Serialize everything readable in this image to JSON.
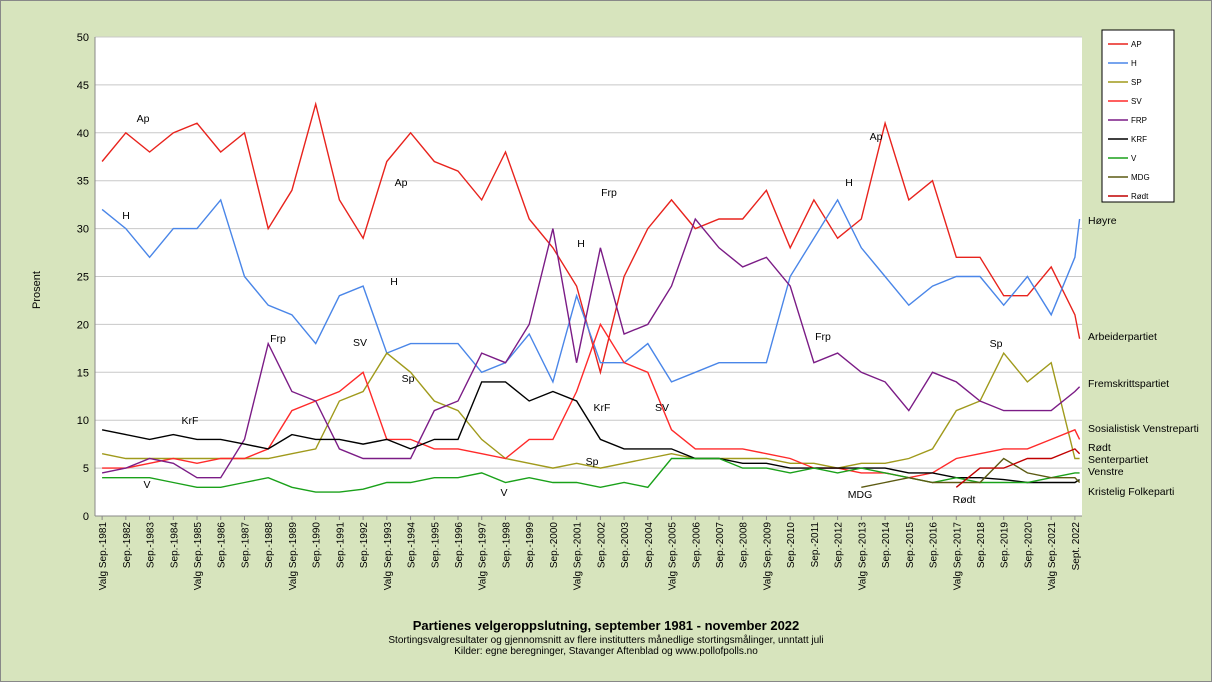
{
  "chart_data": {
    "type": "line",
    "title": "Partienes velgeroppslutning, september 1981 - november 2022",
    "subtitle": "Stortingsvalgresultater og gjennomsnitt av flere institutters månedlige stortingsmålinger, unntatt juli",
    "source": "Kilder: egne beregninger, Stavanger Aftenblad og www.pollofpolls.no",
    "y_label": "Prosent",
    "x": [
      1981.7,
      1982.7,
      1983.7,
      1984.7,
      1985.7,
      1986.7,
      1987.7,
      1988.7,
      1989.7,
      1990.7,
      1991.7,
      1992.7,
      1993.7,
      1994.7,
      1995.7,
      1996.7,
      1997.7,
      1998.7,
      1999.7,
      2000.7,
      2001.7,
      2002.7,
      2003.7,
      2004.7,
      2005.7,
      2006.7,
      2007.7,
      2008.7,
      2009.7,
      2010.7,
      2011.7,
      2012.7,
      2013.7,
      2014.7,
      2015.7,
      2016.7,
      2017.7,
      2018.7,
      2019.7,
      2020.7,
      2021.7,
      2022.7,
      2022.9
    ],
    "xlim": [
      1981.4,
      2023.0
    ],
    "xticks": [
      {
        "value": 1981.7,
        "label": "Valg Sep.-1981"
      },
      {
        "value": 1982.7,
        "label": "Sep.-1982"
      },
      {
        "value": 1983.7,
        "label": "Sep.-1983"
      },
      {
        "value": 1984.7,
        "label": "Sep.-1984"
      },
      {
        "value": 1985.7,
        "label": "Valg Sep.-1985"
      },
      {
        "value": 1986.7,
        "label": "Sep.-1986"
      },
      {
        "value": 1987.7,
        "label": "Sep.-1987"
      },
      {
        "value": 1988.7,
        "label": "Sep.-1988"
      },
      {
        "value": 1989.7,
        "label": "Valg Sep.-1989"
      },
      {
        "value": 1990.7,
        "label": "Sep.-1990"
      },
      {
        "value": 1991.7,
        "label": "Sep.-1991"
      },
      {
        "value": 1992.7,
        "label": "Sep.-1992"
      },
      {
        "value": 1993.7,
        "label": "Valg Sep.-1993"
      },
      {
        "value": 1994.7,
        "label": "Sep.-1994"
      },
      {
        "value": 1995.7,
        "label": "Sep.-1995"
      },
      {
        "value": 1996.7,
        "label": "Sep.-1996"
      },
      {
        "value": 1997.7,
        "label": "Valg Sep.-1997"
      },
      {
        "value": 1998.7,
        "label": "Sep.-1998"
      },
      {
        "value": 1999.7,
        "label": "Sep.-1999"
      },
      {
        "value": 2000.7,
        "label": "Sep.-2000"
      },
      {
        "value": 2001.7,
        "label": "Valg Sep.-2001"
      },
      {
        "value": 2002.7,
        "label": "Sep.-2002"
      },
      {
        "value": 2003.7,
        "label": "Sep.-2003"
      },
      {
        "value": 2004.7,
        "label": "Sep.-2004"
      },
      {
        "value": 2005.7,
        "label": "Valg Sep.-2005"
      },
      {
        "value": 2006.7,
        "label": "Sep.-2006"
      },
      {
        "value": 2007.7,
        "label": "Sep.-2007"
      },
      {
        "value": 2008.7,
        "label": "Sep.-2008"
      },
      {
        "value": 2009.7,
        "label": "Valg Sep.-2009"
      },
      {
        "value": 2010.7,
        "label": "Sep.-2010"
      },
      {
        "value": 2011.7,
        "label": "Sep.-2011"
      },
      {
        "value": 2012.7,
        "label": "Sep.-2012"
      },
      {
        "value": 2013.7,
        "label": "Valg Sep.-2013"
      },
      {
        "value": 2014.7,
        "label": "Sep.-2014"
      },
      {
        "value": 2015.7,
        "label": "Sep.-2015"
      },
      {
        "value": 2016.7,
        "label": "Sep.-2016"
      },
      {
        "value": 2017.7,
        "label": "Valg Sep.-2017"
      },
      {
        "value": 2018.7,
        "label": "Sep.-2018"
      },
      {
        "value": 2019.7,
        "label": "Sep.-2019"
      },
      {
        "value": 2020.7,
        "label": "Sep.-2020"
      },
      {
        "value": 2021.7,
        "label": "Valg Sep.-2021"
      },
      {
        "value": 2022.7,
        "label": "Sept. 2022"
      }
    ],
    "ylim": [
      0,
      50
    ],
    "yticks": [
      0,
      5,
      10,
      15,
      20,
      25,
      30,
      35,
      40,
      45,
      50
    ],
    "grid": true,
    "legend": "top-right",
    "series": [
      {
        "name": "AP",
        "color": "#e8231d",
        "values": [
          37,
          40,
          38,
          40,
          41,
          38,
          40,
          30,
          34,
          43,
          33,
          29,
          37,
          40,
          37,
          36,
          33,
          38,
          31,
          28,
          24,
          15,
          25,
          30,
          33,
          30,
          31,
          31,
          34,
          28,
          33,
          29,
          31,
          41,
          33,
          35,
          27,
          27,
          23,
          23,
          26,
          21,
          18.5
        ]
      },
      {
        "name": "H",
        "color": "#4a86e8",
        "values": [
          32,
          30,
          27,
          30,
          30,
          33,
          25,
          22,
          21,
          18,
          23,
          24,
          17,
          18,
          18,
          18,
          15,
          16,
          19,
          14,
          23,
          16,
          16,
          18,
          14,
          15,
          16,
          16,
          16,
          25,
          29,
          33,
          28,
          25,
          22,
          24,
          25,
          25,
          22,
          25,
          21,
          27,
          31
        ]
      },
      {
        "name": "SP",
        "color": "#a09a1c",
        "values": [
          6.5,
          6,
          6,
          6,
          6,
          6,
          6,
          6,
          6.5,
          7,
          12,
          13,
          17,
          15,
          12,
          11,
          8,
          6,
          5.5,
          5,
          5.5,
          5,
          5.5,
          6,
          6.5,
          6,
          6,
          6,
          6,
          5.5,
          5.5,
          5,
          5.5,
          5.5,
          6,
          7,
          11,
          12,
          17,
          14,
          16,
          6,
          6
        ]
      },
      {
        "name": "SV",
        "color": "#ff2a2a",
        "values": [
          5,
          5,
          5.5,
          6,
          5.5,
          6,
          6,
          7,
          11,
          12,
          13,
          15,
          8,
          8,
          7,
          7,
          6.5,
          6,
          8,
          8,
          13,
          20,
          16,
          15,
          9,
          7,
          7,
          7,
          6.5,
          6,
          5,
          5,
          4.5,
          4.5,
          4,
          4.5,
          6,
          6.5,
          7,
          7,
          8,
          9,
          8
        ]
      },
      {
        "name": "FRP",
        "color": "#7b1c86",
        "values": [
          4.5,
          5,
          6,
          5.5,
          4,
          4,
          8,
          18,
          13,
          12,
          7,
          6,
          6,
          6,
          11,
          12,
          17,
          16,
          20,
          30,
          16,
          28,
          19,
          20,
          24,
          31,
          28,
          26,
          27,
          24,
          16,
          17,
          15,
          14,
          11,
          15,
          14,
          12,
          11,
          11,
          11,
          13,
          13.5
        ]
      },
      {
        "name": "KRF",
        "color": "#000000",
        "values": [
          9,
          8.5,
          8,
          8.5,
          8,
          8,
          7.5,
          7,
          8.5,
          8,
          8,
          7.5,
          8,
          7,
          8,
          8,
          14,
          14,
          12,
          13,
          12,
          8,
          7,
          7,
          7,
          6,
          6,
          5.5,
          5.5,
          5,
          5,
          5,
          5,
          5,
          4.5,
          4.5,
          4,
          4,
          3.8,
          3.5,
          3.5,
          3.5,
          3.8
        ]
      },
      {
        "name": "V",
        "color": "#1aa11a",
        "values": [
          4,
          4,
          4,
          3.5,
          3,
          3,
          3.5,
          4,
          3,
          2.5,
          2.5,
          2.8,
          3.5,
          3.5,
          4,
          4,
          4.5,
          3.5,
          4,
          3.5,
          3.5,
          3,
          3.5,
          3,
          6,
          6,
          6,
          5,
          5,
          4.5,
          5,
          4.5,
          5,
          4.5,
          4,
          3.5,
          4,
          3.5,
          3.5,
          3.5,
          4,
          4.5,
          4.5
        ]
      },
      {
        "name": "MDG",
        "color": "#5c5a12",
        "values": [
          null,
          null,
          null,
          null,
          null,
          null,
          null,
          null,
          null,
          null,
          null,
          null,
          null,
          null,
          null,
          null,
          null,
          null,
          null,
          null,
          null,
          null,
          null,
          null,
          null,
          null,
          null,
          null,
          null,
          null,
          null,
          null,
          3,
          3.5,
          4,
          3.5,
          3.5,
          3.5,
          6,
          4.5,
          4,
          4,
          3.5
        ]
      },
      {
        "name": "Rødt",
        "color": "#c00000",
        "values": [
          null,
          null,
          null,
          null,
          null,
          null,
          null,
          null,
          null,
          null,
          null,
          null,
          null,
          null,
          null,
          null,
          null,
          null,
          null,
          null,
          null,
          null,
          null,
          null,
          null,
          null,
          null,
          null,
          null,
          null,
          null,
          null,
          null,
          null,
          null,
          null,
          3,
          5,
          5,
          6,
          6,
          7,
          6.5
        ]
      }
    ],
    "annotations": [
      "Ap",
      "Ap",
      "Ap",
      "H",
      "H",
      "H",
      "H",
      "Frp",
      "Frp",
      "Frp",
      "SV",
      "SV",
      "Sp",
      "Sp",
      "Sp",
      "KrF",
      "KrF",
      "V",
      "V",
      "MDG",
      "Rødt",
      "Høyre",
      "Arbeiderpartiet",
      "Fremskrittspartiet",
      "Sosialistisk Venstreparti",
      "Rødt",
      "Senterpartiet",
      "Venstre",
      "Kristelig Folkeparti"
    ]
  }
}
